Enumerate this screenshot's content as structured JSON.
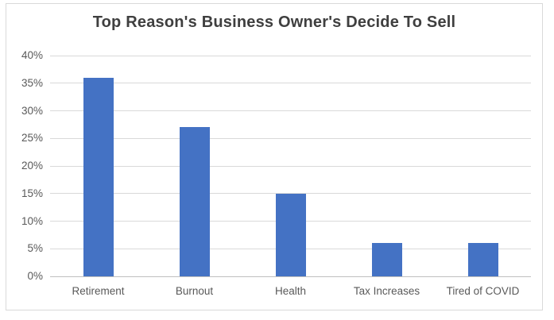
{
  "chart_data": {
    "type": "bar",
    "title": "Top Reason's Business Owner's Decide To Sell",
    "categories": [
      "Retirement",
      "Burnout",
      "Health",
      "Tax Increases",
      "Tired of COVID"
    ],
    "values": [
      36,
      27,
      15,
      6,
      6
    ],
    "value_unit": "%",
    "xlabel": "",
    "ylabel": "",
    "ylim": [
      0,
      40
    ],
    "ytick_step": 5,
    "ytick_labels": [
      "0%",
      "5%",
      "10%",
      "15%",
      "20%",
      "25%",
      "30%",
      "35%",
      "40%"
    ],
    "grid": "horizontal",
    "legend_position": "none",
    "colors": {
      "bar": "#4472c4",
      "gridline": "#d9d9d9",
      "axis_line": "#bfbfbf",
      "tick_label": "#595959",
      "title": "#3f3f3f",
      "frame_border": "#d9d9d9",
      "background": "#ffffff"
    }
  }
}
